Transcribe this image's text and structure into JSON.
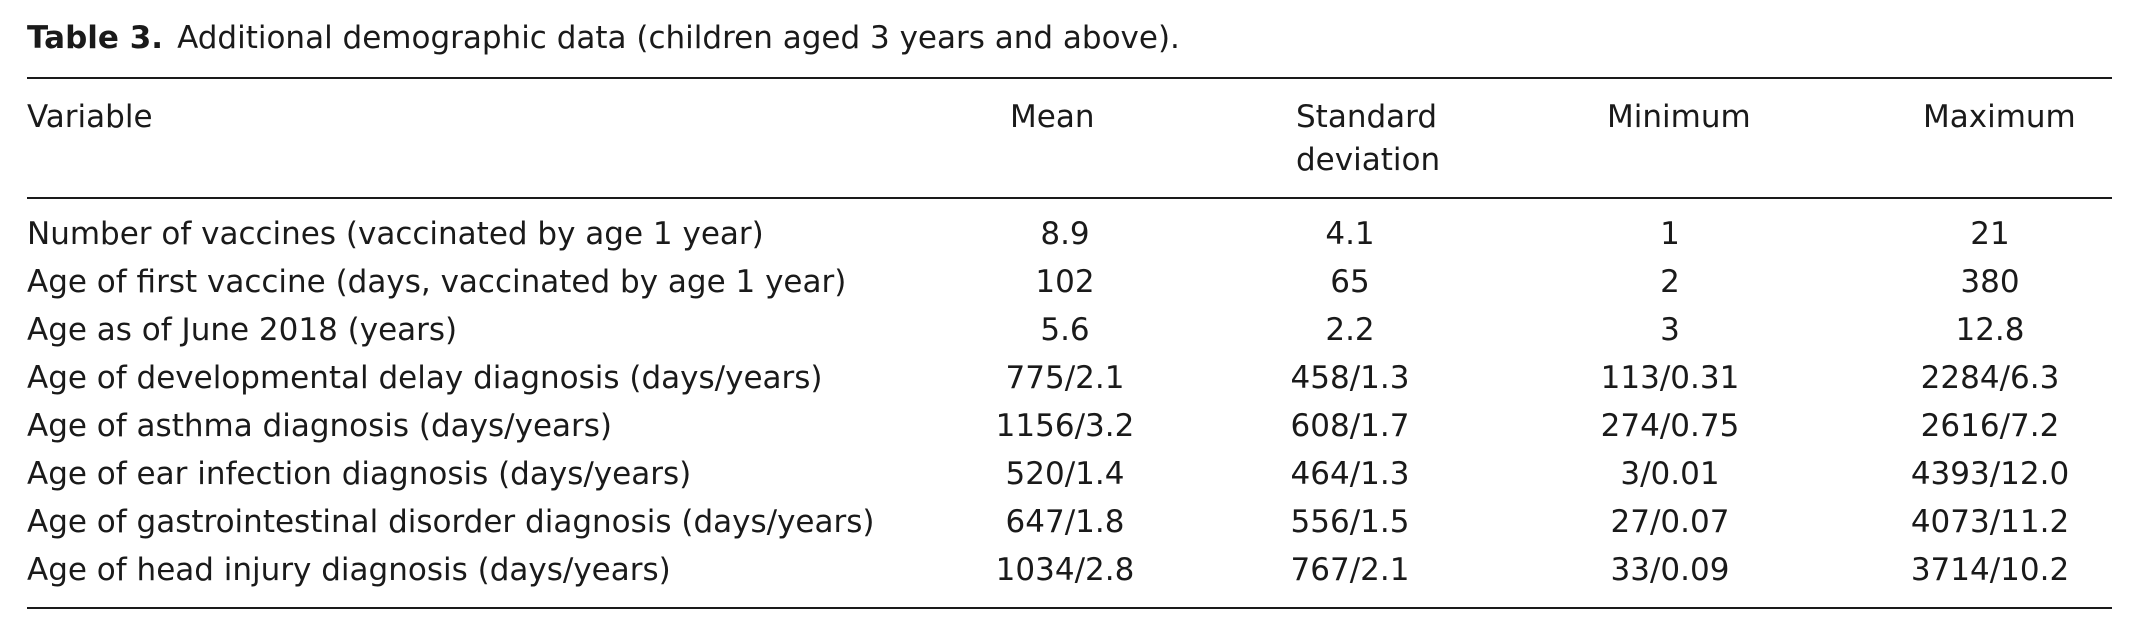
{
  "table": {
    "caption_label": "Table 3.",
    "caption_text": "Additional demographic data (children aged 3 years and above).",
    "headers": {
      "variable": "Variable",
      "mean": "Mean",
      "sd": "Standard deviation",
      "min": "Minimum",
      "max": "Maximum"
    },
    "rows": [
      {
        "variable": "Number of vaccines (vaccinated by age 1 year)",
        "mean": "8.9",
        "sd": "4.1",
        "min": "1",
        "max": "21"
      },
      {
        "variable": "Age of first vaccine (days, vaccinated by age 1 year)",
        "mean": "102",
        "sd": "65",
        "min": "2",
        "max": "380"
      },
      {
        "variable": "Age as of June 2018 (years)",
        "mean": "5.6",
        "sd": "2.2",
        "min": "3",
        "max": "12.8"
      },
      {
        "variable": "Age of developmental delay diagnosis (days/years)",
        "mean": "775/2.1",
        "sd": "458/1.3",
        "min": "113/0.31",
        "max": "2284/6.3"
      },
      {
        "variable": "Age of asthma diagnosis (days/years)",
        "mean": "1156/3.2",
        "sd": "608/1.7",
        "min": "274/0.75",
        "max": "2616/7.2"
      },
      {
        "variable": "Age of ear infection diagnosis (days/years)",
        "mean": "520/1.4",
        "sd": "464/1.3",
        "min": "3/0.01",
        "max": "4393/12.0"
      },
      {
        "variable": "Age of gastrointestinal disorder diagnosis (days/years)",
        "mean": "647/1.8",
        "sd": "556/1.5",
        "min": "27/0.07",
        "max": "4073/11.2"
      },
      {
        "variable": "Age of head injury diagnosis (days/years)",
        "mean": "1034/2.8",
        "sd": "767/2.1",
        "min": "33/0.09",
        "max": "3714/10.2"
      }
    ]
  }
}
